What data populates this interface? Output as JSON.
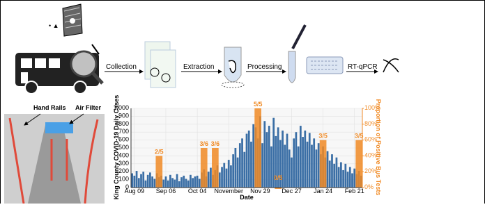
{
  "diagram": {
    "steps": [
      "Collection",
      "Extraction",
      "Processing",
      "RT-qPCR"
    ],
    "photo_labels": [
      "Hand Rails",
      "Air Filter"
    ]
  },
  "chart_data": {
    "type": "bar",
    "categories": [
      null,
      "Aug 09",
      null,
      null,
      null,
      null,
      null,
      null,
      null,
      null,
      null,
      null,
      null,
      null,
      null,
      "Sep 06",
      null,
      null,
      null,
      null,
      null,
      null,
      null,
      null,
      null,
      null,
      null,
      null,
      null,
      "Oct 04",
      null,
      null,
      null,
      null,
      null,
      null,
      null,
      null,
      null,
      null,
      null,
      null,
      null,
      "November",
      null,
      null,
      null,
      null,
      null,
      null,
      null,
      null,
      null,
      null,
      null,
      null,
      null,
      "Nov 29",
      null,
      null,
      null,
      null,
      null,
      null,
      null,
      null,
      null,
      null,
      null,
      null,
      null,
      "Dec 27",
      null,
      null,
      null,
      null,
      null,
      null,
      null,
      null,
      null,
      null,
      null,
      null,
      null,
      "Jan 24",
      null,
      null,
      null,
      null,
      null,
      null,
      null,
      null,
      null,
      null,
      null,
      null,
      null,
      "Feb 21",
      null,
      null,
      null
    ],
    "x_label": "Date",
    "y_label": "King County COVID-19 Daily Cases",
    "y2_label": "Proportion of Positive Bus Tests",
    "ylim": [
      0,
      1000
    ],
    "yticks": [
      0,
      100,
      200,
      300,
      400,
      500,
      600,
      700,
      800,
      900,
      {
        "value": 1000,
        "label": "1,000"
      }
    ],
    "y2lim": [
      0,
      100
    ],
    "y2ticks": [
      {
        "value": 0,
        "label": "0%"
      },
      {
        "value": 20,
        "label": "20%"
      },
      {
        "value": 40,
        "label": "40%"
      },
      {
        "value": 60,
        "label": "60%"
      },
      {
        "value": 80,
        "label": "80%"
      },
      {
        "value": 100,
        "label": "100%"
      }
    ],
    "grid": true,
    "series": [
      {
        "color": "#3a6ea5",
        "values": [
          180,
          150,
          210,
          120,
          170,
          200,
          90,
          160,
          190,
          140,
          110,
          180,
          130,
          150,
          100,
          140,
          90,
          160,
          120,
          100,
          170,
          80,
          130,
          150,
          110,
          90,
          160,
          120,
          140,
          150,
          110,
          190,
          230,
          140,
          200,
          250,
          160,
          220,
          280,
          190,
          260,
          310,
          240,
          350,
          280,
          420,
          500,
          380,
          560,
          620,
          450,
          680,
          720,
          580,
          800,
          760,
          620,
          900,
          560,
          840,
          700,
          780,
          520,
          880,
          650,
          760,
          600,
          720,
          540,
          680,
          480,
          380,
          620,
          700,
          520,
          780,
          640,
          720,
          580,
          690,
          540,
          620,
          480,
          560,
          420,
          520,
          380,
          460,
          340,
          420,
          300,
          380,
          260,
          320,
          220,
          300,
          200,
          260,
          180,
          240,
          170,
          210,
          150
        ]
      },
      {
        "color": "#f08a24",
        "axis": "y2",
        "values": [
          null,
          null,
          null,
          null,
          null,
          null,
          null,
          null,
          null,
          null,
          null,
          null,
          40,
          null,
          null,
          null,
          null,
          null,
          null,
          null,
          null,
          null,
          null,
          null,
          null,
          null,
          null,
          null,
          null,
          null,
          null,
          null,
          50,
          null,
          null,
          null,
          null,
          50,
          null,
          null,
          null,
          null,
          null,
          null,
          null,
          null,
          null,
          null,
          null,
          null,
          null,
          null,
          null,
          null,
          null,
          null,
          100,
          null,
          null,
          null,
          null,
          null,
          null,
          null,
          null,
          0,
          null,
          null,
          null,
          null,
          null,
          null,
          null,
          null,
          null,
          null,
          null,
          null,
          null,
          null,
          null,
          null,
          null,
          null,
          null,
          60,
          null,
          null,
          null,
          null,
          null,
          null,
          null,
          null,
          null,
          null,
          null,
          null,
          null,
          null,
          null,
          60,
          null
        ],
        "value_labels": [
          null,
          null,
          null,
          null,
          null,
          null,
          null,
          null,
          null,
          null,
          null,
          null,
          "2/5",
          null,
          null,
          null,
          null,
          null,
          null,
          null,
          null,
          null,
          null,
          null,
          null,
          null,
          null,
          null,
          null,
          null,
          null,
          null,
          "3/6",
          null,
          null,
          null,
          null,
          "3/6",
          null,
          null,
          null,
          null,
          null,
          null,
          null,
          null,
          null,
          null,
          null,
          null,
          null,
          null,
          null,
          null,
          null,
          null,
          "5/5",
          null,
          null,
          null,
          null,
          null,
          null,
          null,
          null,
          "0/5",
          null,
          null,
          null,
          null,
          null,
          null,
          null,
          null,
          null,
          null,
          null,
          null,
          null,
          null,
          null,
          null,
          null,
          null,
          null,
          "3/5",
          null,
          null,
          null,
          null,
          null,
          null,
          null,
          null,
          null,
          null,
          null,
          null,
          null,
          null,
          null,
          "3/5",
          null
        ]
      }
    ]
  }
}
